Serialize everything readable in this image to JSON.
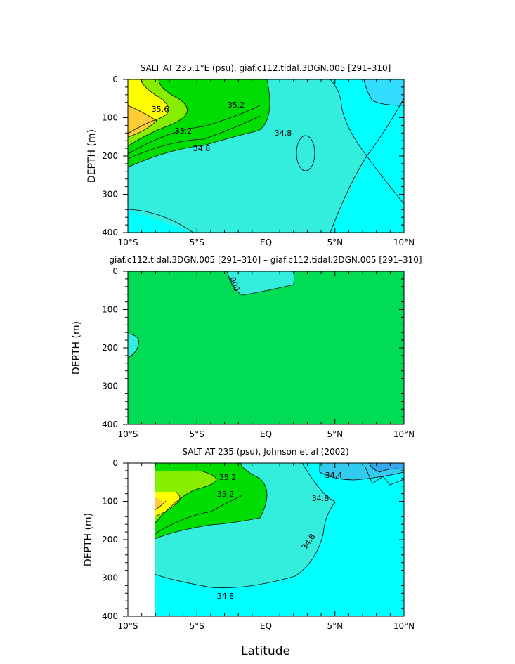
{
  "chart_data": [
    {
      "type": "contour",
      "title": "SALT AT 235.1°E (psu), giaf.c112.tidal.3DGN.005 [291–310]",
      "xlabel": "",
      "ylabel": "DEPTH (m)",
      "x_ticks": [
        "10°S",
        "5°S",
        "EQ",
        "5°N",
        "10°N"
      ],
      "y_ticks": [
        "0",
        "100",
        "200",
        "300",
        "400"
      ],
      "xlim": [
        -10,
        10
      ],
      "ylim": [
        400,
        0
      ],
      "contour_labels": [
        "35.6",
        "35.2",
        "35.2",
        "34.8",
        "34.8"
      ],
      "colors": {
        "34.4-34.8": "#00ffff",
        "34.8-35.2": "#33eedd",
        "35.2-35.4": "#00dd00",
        "35.4-35.6": "#88ee00",
        "35.6-35.8": "#ffff00",
        "35.8+": "#ffcc33",
        "<34.4": "#33ccff"
      }
    },
    {
      "type": "contour",
      "title": "giaf.c112.tidal.3DGN.005 [291–310] – giaf.c112.tidal.2DGN.005 [291–310]",
      "xlabel": "",
      "ylabel": "DEPTH (m)",
      "x_ticks": [
        "10°S",
        "5°S",
        "EQ",
        "5°N",
        "10°N"
      ],
      "y_ticks": [
        "0",
        "100",
        "200",
        "300",
        "400"
      ],
      "xlim": [
        -10,
        10
      ],
      "ylim": [
        400,
        0
      ],
      "contour_labels": [
        ".000"
      ],
      "colors": {
        "background": "#00dd55",
        "negative": "#33eedd"
      }
    },
    {
      "type": "contour",
      "title": "SALT AT 235 (psu), Johnson et al (2002)",
      "xlabel": "Latitude",
      "ylabel": "DEPTH (m)",
      "x_ticks": [
        "10°S",
        "5°S",
        "EQ",
        "5°N",
        "10°N"
      ],
      "y_ticks": [
        "0",
        "100",
        "200",
        "300",
        "400"
      ],
      "xlim": [
        -10,
        10
      ],
      "ylim": [
        400,
        0
      ],
      "contour_labels": [
        "35.2",
        "35.2",
        "34.4",
        "34.8",
        "34.8",
        "34.8"
      ],
      "colors": {
        "34.4-34.8": "#00ffff",
        "34.8-35.2": "#33eedd",
        "35.2-35.4": "#00dd00",
        "35.4-35.6": "#88ee00",
        "35.6-35.8": "#ffff00",
        "35.8+": "#ffcc33",
        "<34.4": "#33ccff"
      }
    }
  ]
}
